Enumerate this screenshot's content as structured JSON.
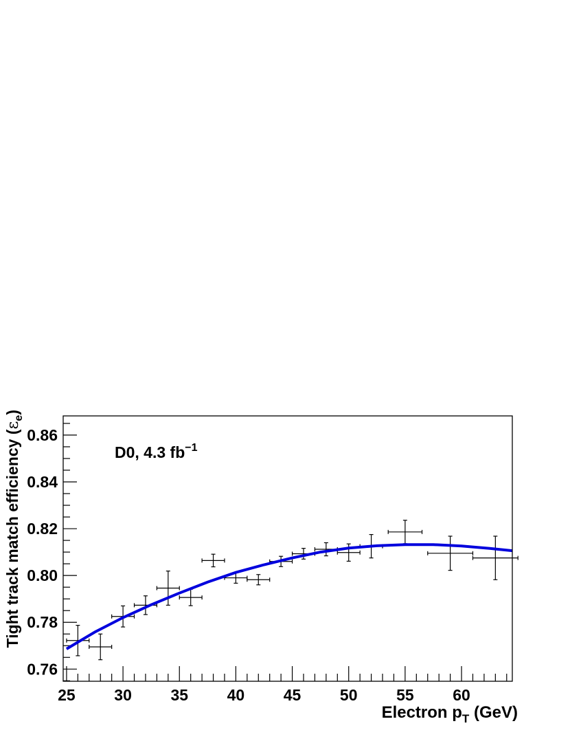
{
  "chart_data": {
    "type": "scatter",
    "title": "",
    "annotation": {
      "main": "D0, 4.3 fb",
      "superscript": "−1"
    },
    "xlabel": {
      "main": "Electron p",
      "subscript": "T",
      "unit": " (GeV)"
    },
    "ylabel": {
      "main": "Tight track match efficiency (",
      "symbol": "ε",
      "subscript": "e",
      "close": ")"
    },
    "xlim": [
      24.7,
      64.5
    ],
    "ylim": [
      0.7548,
      0.8682
    ],
    "x_ticks": [
      25,
      30,
      35,
      40,
      45,
      50,
      55,
      60
    ],
    "y_ticks": [
      0.76,
      0.78,
      0.8,
      0.82,
      0.84,
      0.86
    ],
    "x_tick_labels": [
      "25",
      "30",
      "35",
      "40",
      "45",
      "50",
      "55",
      "60"
    ],
    "y_tick_labels": [
      "0.76",
      "0.78",
      "0.80",
      "0.82",
      "0.84",
      "0.86"
    ],
    "grid": false,
    "series": [
      {
        "type": "points_with_errors",
        "color": "#000000",
        "x": [
          26,
          28,
          30,
          32,
          34,
          36,
          38,
          40,
          42,
          44,
          46,
          48,
          50,
          52,
          55,
          59,
          63
        ],
        "xerr": [
          1,
          1,
          1,
          1,
          1,
          1,
          1,
          1,
          1,
          1,
          1,
          1,
          1,
          1,
          1.5,
          2,
          2
        ],
        "y": [
          0.7722,
          0.7695,
          0.7825,
          0.7873,
          0.7946,
          0.7906,
          0.8064,
          0.799,
          0.7982,
          0.806,
          0.8093,
          0.8112,
          0.8098,
          0.8125,
          0.8186,
          0.8095,
          0.8075
        ],
        "yerr": [
          0.0065,
          0.0055,
          0.0045,
          0.004,
          0.0073,
          0.0035,
          0.0027,
          0.0023,
          0.0022,
          0.0022,
          0.0023,
          0.0028,
          0.0037,
          0.005,
          0.005,
          0.0073,
          0.0093
        ]
      },
      {
        "type": "line",
        "color": "#0000dd",
        "x": [
          25,
          27.5,
          30,
          32.5,
          35,
          37.5,
          40,
          42.5,
          45,
          47.5,
          50,
          52.5,
          55,
          57.5,
          60,
          62.5,
          64.5
        ],
        "y": [
          0.7686,
          0.7758,
          0.782,
          0.7875,
          0.7925,
          0.7972,
          0.8013,
          0.8046,
          0.8075,
          0.81,
          0.8117,
          0.8127,
          0.8132,
          0.8132,
          0.8126,
          0.8116,
          0.8106
        ]
      }
    ]
  }
}
